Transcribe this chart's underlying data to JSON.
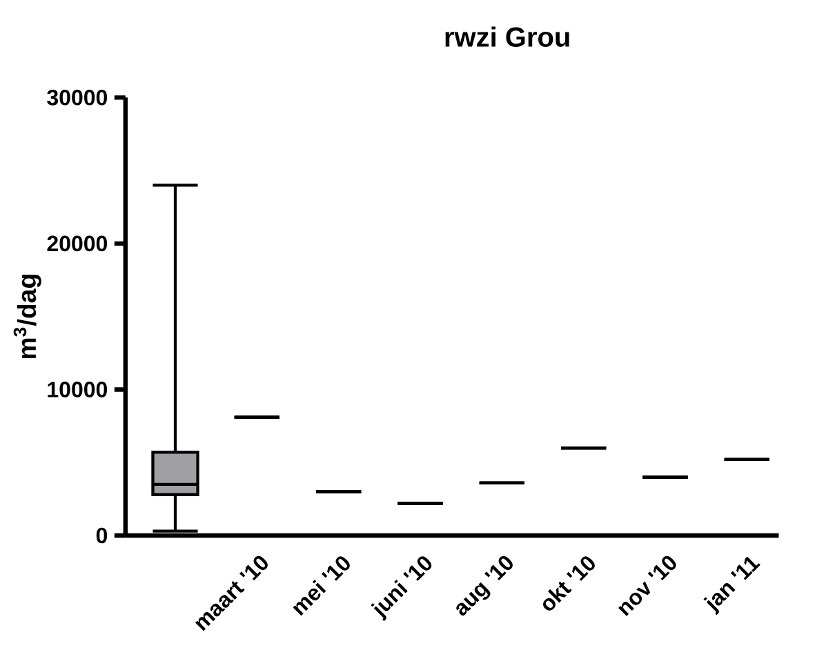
{
  "chart_data": {
    "type": "box",
    "title": "rwzi Grou",
    "ylabel": "m$^{3}$/dag",
    "categories": [
      null,
      "maart '10",
      "mei '10",
      "juni '10",
      "aug '10",
      "okt '10",
      "nov '10",
      "jan '11"
    ],
    "boxes": [
      {
        "low": 300,
        "q1": 2800,
        "median": 3500,
        "q3": 5700,
        "high": 24000
      },
      {
        "low": 8100,
        "q1": 8100,
        "median": 8100,
        "q3": 8100,
        "high": 8100
      },
      {
        "low": 3000,
        "q1": 3000,
        "median": 3000,
        "q3": 3000,
        "high": 3000
      },
      {
        "low": 2200,
        "q1": 2200,
        "median": 2200,
        "q3": 2200,
        "high": 2200
      },
      {
        "low": 3600,
        "q1": 3600,
        "median": 3600,
        "q3": 3600,
        "high": 3600
      },
      {
        "low": 6000,
        "q1": 6000,
        "median": 6000,
        "q3": 6000,
        "high": 6000
      },
      {
        "low": 4000,
        "q1": 4000,
        "median": 4000,
        "q3": 4000,
        "high": 4000
      },
      {
        "low": 5200,
        "q1": 5200,
        "median": 5200,
        "q3": 5200,
        "high": 5200
      }
    ],
    "colors": [
      "#a0a0a4",
      "#000000",
      "#000000",
      "#000000",
      "#000000",
      "#000000",
      "#000000",
      "#000000"
    ],
    "ylim": [
      0,
      30000
    ],
    "yticks": [
      0,
      10000,
      20000,
      30000
    ]
  }
}
